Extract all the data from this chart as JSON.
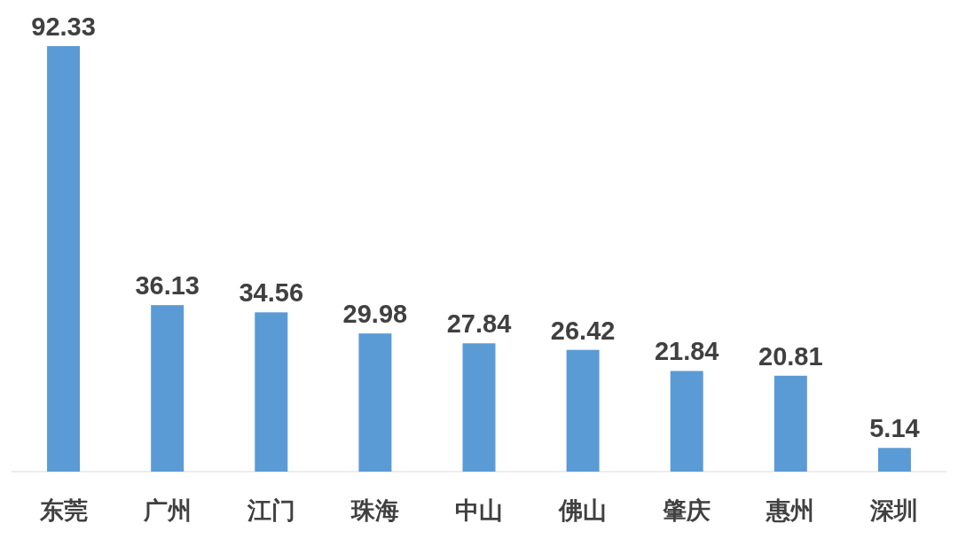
{
  "chart_data": {
    "type": "bar",
    "categories": [
      "东莞",
      "广州",
      "江门",
      "珠海",
      "中山",
      "佛山",
      "肇庆",
      "惠州",
      "深圳"
    ],
    "values": [
      92.33,
      36.13,
      34.56,
      29.98,
      27.84,
      26.42,
      21.84,
      20.81,
      5.14
    ],
    "color": "#5b9bd5",
    "data_labels": true
  }
}
